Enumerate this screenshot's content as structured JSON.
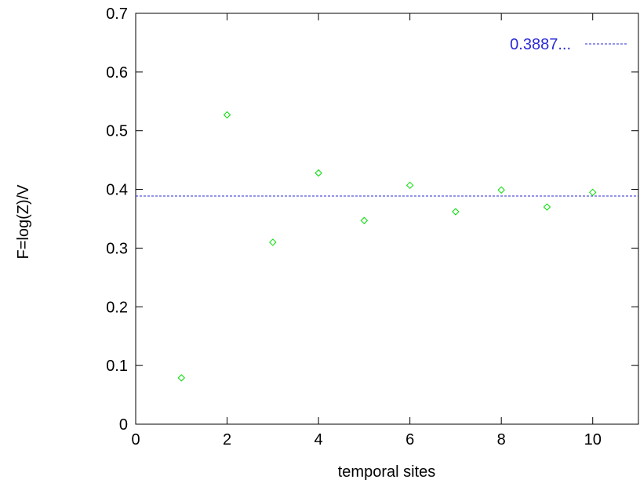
{
  "chart_data": {
    "type": "scatter",
    "title": "",
    "xlabel": "temporal sites",
    "ylabel": "F=log(Z)/V",
    "xlim": [
      0,
      11
    ],
    "ylim": [
      0,
      0.7
    ],
    "x_ticks": [
      "0",
      "2",
      "4",
      "6",
      "8",
      "10"
    ],
    "y_ticks": [
      "0",
      "0.1",
      "0.2",
      "0.3",
      "0.4",
      "0.5",
      "0.6",
      "0.7"
    ],
    "grid": false,
    "series": [
      {
        "marker": "diamond",
        "color": "#00dd00",
        "x": [
          1,
          2,
          3,
          4,
          5,
          6,
          7,
          8,
          9,
          10
        ],
        "y": [
          0.079,
          0.527,
          0.31,
          0.428,
          0.347,
          0.407,
          0.362,
          0.399,
          0.37,
          0.395
        ]
      }
    ],
    "reference_line": {
      "label": "0.3887...",
      "value": 0.3887,
      "style": "dashed",
      "color": "#2b2bd6"
    },
    "legend_placement": "top-right"
  }
}
